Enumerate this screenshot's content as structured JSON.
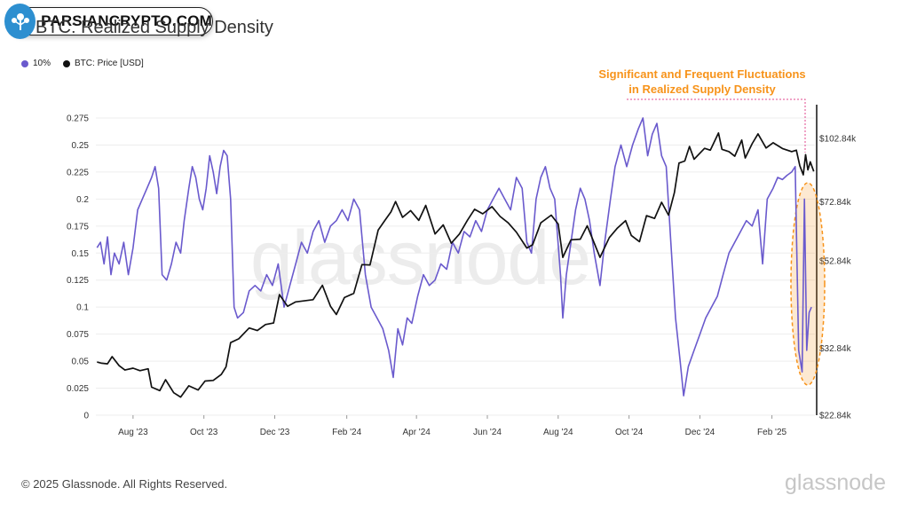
{
  "title": "BTC: Realized Supply Density",
  "watermark_badge": "PARSIANCRYPTO.COM",
  "legend": [
    {
      "label": "10%",
      "color": "#6a5acd"
    },
    {
      "label": "BTC: Price [USD]",
      "color": "#111111"
    }
  ],
  "annotation": {
    "line1": "Significant and Frequent Fluctuations",
    "line2": "in Realized Supply Density",
    "color": "#f7931a"
  },
  "footer": "© 2025 Glassnode. All Rights Reserved.",
  "brand": "glassnode",
  "watermark": "glassnode",
  "chart_data": {
    "type": "line",
    "title": "BTC: Realized Supply Density",
    "x_start": "2023-06-30",
    "x_end": "2025-03-10",
    "x_ticks": [
      {
        "label": "Aug '23",
        "date": "2023-08-01"
      },
      {
        "label": "Oct '23",
        "date": "2023-10-01"
      },
      {
        "label": "Dec '23",
        "date": "2023-12-01"
      },
      {
        "label": "Feb '24",
        "date": "2024-02-01"
      },
      {
        "label": "Apr '24",
        "date": "2024-04-01"
      },
      {
        "label": "Jun '24",
        "date": "2024-06-01"
      },
      {
        "label": "Aug '24",
        "date": "2024-08-01"
      },
      {
        "label": "Oct '24",
        "date": "2024-10-01"
      },
      {
        "label": "Dec '24",
        "date": "2024-12-01"
      },
      {
        "label": "Feb '25",
        "date": "2025-02-01"
      }
    ],
    "y_left": {
      "min": 0,
      "max": 0.275,
      "ticks": [
        0,
        0.025,
        0.05,
        0.075,
        0.1,
        0.125,
        0.15,
        0.175,
        0.2,
        0.225,
        0.25,
        0.275
      ],
      "tick_labels": [
        "0",
        "0.025",
        "0.05",
        "0.075",
        "0.1",
        "0.125",
        "0.15",
        "0.175",
        "0.2",
        "0.225",
        "0.25",
        "0.275"
      ]
    },
    "y_right": {
      "scale": "log",
      "min": 22840,
      "max": 115000,
      "ticks": [
        22840,
        32840,
        52840,
        72840,
        102840
      ],
      "tick_labels": [
        "$22.84k",
        "$32.84k",
        "$52.84k",
        "$72.84k",
        "$102.84k"
      ]
    },
    "series": [
      {
        "name": "10%",
        "axis": "left",
        "color": "#6a5acd",
        "points": [
          [
            "2023-07-01",
            0.155
          ],
          [
            "2023-07-04",
            0.16
          ],
          [
            "2023-07-07",
            0.14
          ],
          [
            "2023-07-10",
            0.165
          ],
          [
            "2023-07-13",
            0.13
          ],
          [
            "2023-07-16",
            0.15
          ],
          [
            "2023-07-20",
            0.14
          ],
          [
            "2023-07-24",
            0.16
          ],
          [
            "2023-07-28",
            0.13
          ],
          [
            "2023-08-01",
            0.155
          ],
          [
            "2023-08-05",
            0.19
          ],
          [
            "2023-08-09",
            0.2
          ],
          [
            "2023-08-13",
            0.21
          ],
          [
            "2023-08-17",
            0.22
          ],
          [
            "2023-08-20",
            0.23
          ],
          [
            "2023-08-23",
            0.21
          ],
          [
            "2023-08-26",
            0.13
          ],
          [
            "2023-08-30",
            0.125
          ],
          [
            "2023-09-03",
            0.14
          ],
          [
            "2023-09-07",
            0.16
          ],
          [
            "2023-09-11",
            0.15
          ],
          [
            "2023-09-14",
            0.18
          ],
          [
            "2023-09-18",
            0.21
          ],
          [
            "2023-09-21",
            0.23
          ],
          [
            "2023-09-24",
            0.22
          ],
          [
            "2023-09-27",
            0.2
          ],
          [
            "2023-09-30",
            0.19
          ],
          [
            "2023-10-03",
            0.21
          ],
          [
            "2023-10-06",
            0.24
          ],
          [
            "2023-10-09",
            0.225
          ],
          [
            "2023-10-12",
            0.205
          ],
          [
            "2023-10-15",
            0.23
          ],
          [
            "2023-10-18",
            0.245
          ],
          [
            "2023-10-21",
            0.24
          ],
          [
            "2023-10-24",
            0.2
          ],
          [
            "2023-10-27",
            0.1
          ],
          [
            "2023-10-30",
            0.09
          ],
          [
            "2023-11-04",
            0.095
          ],
          [
            "2023-11-09",
            0.115
          ],
          [
            "2023-11-14",
            0.12
          ],
          [
            "2023-11-19",
            0.115
          ],
          [
            "2023-11-24",
            0.13
          ],
          [
            "2023-11-29",
            0.12
          ],
          [
            "2023-12-04",
            0.14
          ],
          [
            "2023-12-09",
            0.1
          ],
          [
            "2023-12-14",
            0.12
          ],
          [
            "2023-12-19",
            0.14
          ],
          [
            "2023-12-24",
            0.16
          ],
          [
            "2023-12-29",
            0.15
          ],
          [
            "2024-01-03",
            0.17
          ],
          [
            "2024-01-08",
            0.18
          ],
          [
            "2024-01-13",
            0.16
          ],
          [
            "2024-01-18",
            0.175
          ],
          [
            "2024-01-23",
            0.18
          ],
          [
            "2024-01-28",
            0.19
          ],
          [
            "2024-02-02",
            0.18
          ],
          [
            "2024-02-07",
            0.2
          ],
          [
            "2024-02-12",
            0.19
          ],
          [
            "2024-02-17",
            0.13
          ],
          [
            "2024-02-22",
            0.1
          ],
          [
            "2024-02-27",
            0.09
          ],
          [
            "2024-03-03",
            0.08
          ],
          [
            "2024-03-08",
            0.06
          ],
          [
            "2024-03-12",
            0.035
          ],
          [
            "2024-03-16",
            0.08
          ],
          [
            "2024-03-20",
            0.065
          ],
          [
            "2024-03-24",
            0.09
          ],
          [
            "2024-03-28",
            0.085
          ],
          [
            "2024-04-02",
            0.11
          ],
          [
            "2024-04-07",
            0.13
          ],
          [
            "2024-04-12",
            0.12
          ],
          [
            "2024-04-17",
            0.125
          ],
          [
            "2024-04-22",
            0.14
          ],
          [
            "2024-04-27",
            0.135
          ],
          [
            "2024-05-02",
            0.16
          ],
          [
            "2024-05-07",
            0.15
          ],
          [
            "2024-05-12",
            0.17
          ],
          [
            "2024-05-17",
            0.165
          ],
          [
            "2024-05-22",
            0.18
          ],
          [
            "2024-05-27",
            0.17
          ],
          [
            "2024-06-01",
            0.19
          ],
          [
            "2024-06-06",
            0.2
          ],
          [
            "2024-06-11",
            0.21
          ],
          [
            "2024-06-16",
            0.2
          ],
          [
            "2024-06-21",
            0.19
          ],
          [
            "2024-06-26",
            0.22
          ],
          [
            "2024-07-01",
            0.21
          ],
          [
            "2024-07-05",
            0.16
          ],
          [
            "2024-07-09",
            0.15
          ],
          [
            "2024-07-13",
            0.2
          ],
          [
            "2024-07-17",
            0.22
          ],
          [
            "2024-07-21",
            0.23
          ],
          [
            "2024-07-25",
            0.21
          ],
          [
            "2024-07-29",
            0.2
          ],
          [
            "2024-08-03",
            0.13
          ],
          [
            "2024-08-05",
            0.09
          ],
          [
            "2024-08-08",
            0.13
          ],
          [
            "2024-08-12",
            0.16
          ],
          [
            "2024-08-16",
            0.19
          ],
          [
            "2024-08-20",
            0.21
          ],
          [
            "2024-08-24",
            0.2
          ],
          [
            "2024-08-28",
            0.18
          ],
          [
            "2024-09-01",
            0.15
          ],
          [
            "2024-09-06",
            0.12
          ],
          [
            "2024-09-10",
            0.16
          ],
          [
            "2024-09-15",
            0.2
          ],
          [
            "2024-09-19",
            0.23
          ],
          [
            "2024-09-24",
            0.25
          ],
          [
            "2024-09-29",
            0.23
          ],
          [
            "2024-10-04",
            0.25
          ],
          [
            "2024-10-09",
            0.265
          ],
          [
            "2024-10-13",
            0.275
          ],
          [
            "2024-10-17",
            0.24
          ],
          [
            "2024-10-21",
            0.26
          ],
          [
            "2024-10-25",
            0.27
          ],
          [
            "2024-10-29",
            0.24
          ],
          [
            "2024-11-02",
            0.23
          ],
          [
            "2024-11-06",
            0.16
          ],
          [
            "2024-11-10",
            0.09
          ],
          [
            "2024-11-14",
            0.05
          ],
          [
            "2024-11-17",
            0.018
          ],
          [
            "2024-11-21",
            0.045
          ],
          [
            "2024-11-26",
            0.06
          ],
          [
            "2024-12-01",
            0.075
          ],
          [
            "2024-12-06",
            0.09
          ],
          [
            "2024-12-11",
            0.1
          ],
          [
            "2024-12-16",
            0.11
          ],
          [
            "2024-12-21",
            0.13
          ],
          [
            "2024-12-26",
            0.15
          ],
          [
            "2024-12-31",
            0.16
          ],
          [
            "2025-01-05",
            0.17
          ],
          [
            "2025-01-10",
            0.18
          ],
          [
            "2025-01-15",
            0.175
          ],
          [
            "2025-01-20",
            0.19
          ],
          [
            "2025-01-24",
            0.14
          ],
          [
            "2025-01-28",
            0.2
          ],
          [
            "2025-02-02",
            0.21
          ],
          [
            "2025-02-06",
            0.22
          ],
          [
            "2025-02-10",
            0.218
          ],
          [
            "2025-02-14",
            0.222
          ],
          [
            "2025-02-18",
            0.225
          ],
          [
            "2025-02-21",
            0.23
          ],
          [
            "2025-02-24",
            0.06
          ],
          [
            "2025-02-27",
            0.04
          ],
          [
            "2025-03-01",
            0.2
          ],
          [
            "2025-03-03",
            0.06
          ],
          [
            "2025-03-05",
            0.095
          ],
          [
            "2025-03-07",
            0.1
          ]
        ]
      },
      {
        "name": "BTC: Price [USD]",
        "axis": "right",
        "color": "#111111",
        "points": [
          [
            "2023-07-01",
            30500
          ],
          [
            "2023-07-05",
            30300
          ],
          [
            "2023-07-10",
            30200
          ],
          [
            "2023-07-14",
            31400
          ],
          [
            "2023-07-20",
            29900
          ],
          [
            "2023-07-25",
            29200
          ],
          [
            "2023-08-01",
            29500
          ],
          [
            "2023-08-07",
            29100
          ],
          [
            "2023-08-14",
            29400
          ],
          [
            "2023-08-17",
            26600
          ],
          [
            "2023-08-24",
            26100
          ],
          [
            "2023-08-29",
            27700
          ],
          [
            "2023-09-05",
            25800
          ],
          [
            "2023-09-11",
            25200
          ],
          [
            "2023-09-18",
            26800
          ],
          [
            "2023-09-26",
            26200
          ],
          [
            "2023-10-02",
            27500
          ],
          [
            "2023-10-09",
            27600
          ],
          [
            "2023-10-16",
            28500
          ],
          [
            "2023-10-20",
            29700
          ],
          [
            "2023-10-24",
            33900
          ],
          [
            "2023-10-31",
            34600
          ],
          [
            "2023-11-09",
            36700
          ],
          [
            "2023-11-16",
            36200
          ],
          [
            "2023-11-23",
            37400
          ],
          [
            "2023-11-30",
            37700
          ],
          [
            "2023-12-05",
            44000
          ],
          [
            "2023-12-12",
            41300
          ],
          [
            "2023-12-19",
            42300
          ],
          [
            "2023-12-28",
            42600
          ],
          [
            "2024-01-03",
            42800
          ],
          [
            "2024-01-11",
            46300
          ],
          [
            "2024-01-18",
            41300
          ],
          [
            "2024-01-23",
            39500
          ],
          [
            "2024-01-30",
            43300
          ],
          [
            "2024-02-07",
            44300
          ],
          [
            "2024-02-14",
            51800
          ],
          [
            "2024-02-21",
            51700
          ],
          [
            "2024-02-28",
            62500
          ],
          [
            "2024-03-05",
            66000
          ],
          [
            "2024-03-10",
            69000
          ],
          [
            "2024-03-14",
            73000
          ],
          [
            "2024-03-20",
            67000
          ],
          [
            "2024-03-27",
            69500
          ],
          [
            "2024-04-03",
            65900
          ],
          [
            "2024-04-09",
            71500
          ],
          [
            "2024-04-17",
            61200
          ],
          [
            "2024-04-24",
            64300
          ],
          [
            "2024-05-01",
            58200
          ],
          [
            "2024-05-08",
            61200
          ],
          [
            "2024-05-15",
            66000
          ],
          [
            "2024-05-21",
            70000
          ],
          [
            "2024-05-28",
            68300
          ],
          [
            "2024-06-05",
            71000
          ],
          [
            "2024-06-12",
            67300
          ],
          [
            "2024-06-19",
            65000
          ],
          [
            "2024-06-26",
            61800
          ],
          [
            "2024-07-05",
            56700
          ],
          [
            "2024-07-10",
            57700
          ],
          [
            "2024-07-17",
            65000
          ],
          [
            "2024-07-26",
            67800
          ],
          [
            "2024-08-01",
            64600
          ],
          [
            "2024-08-05",
            53900
          ],
          [
            "2024-08-12",
            59300
          ],
          [
            "2024-08-20",
            59500
          ],
          [
            "2024-08-26",
            64000
          ],
          [
            "2024-09-06",
            53900
          ],
          [
            "2024-09-14",
            60000
          ],
          [
            "2024-09-21",
            63200
          ],
          [
            "2024-09-28",
            65800
          ],
          [
            "2024-10-03",
            60700
          ],
          [
            "2024-10-10",
            58700
          ],
          [
            "2024-10-16",
            67600
          ],
          [
            "2024-10-23",
            66600
          ],
          [
            "2024-10-29",
            72700
          ],
          [
            "2024-11-04",
            67800
          ],
          [
            "2024-11-09",
            76600
          ],
          [
            "2024-11-13",
            90000
          ],
          [
            "2024-11-18",
            91000
          ],
          [
            "2024-11-22",
            98500
          ],
          [
            "2024-11-26",
            91900
          ],
          [
            "2024-12-05",
            97500
          ],
          [
            "2024-12-10",
            96500
          ],
          [
            "2024-12-17",
            106000
          ],
          [
            "2024-12-20",
            97000
          ],
          [
            "2024-12-26",
            95800
          ],
          [
            "2024-12-31",
            93400
          ],
          [
            "2025-01-06",
            102000
          ],
          [
            "2025-01-09",
            92500
          ],
          [
            "2025-01-15",
            100000
          ],
          [
            "2025-01-20",
            105500
          ],
          [
            "2025-01-27",
            97700
          ],
          [
            "2025-02-02",
            100500
          ],
          [
            "2025-02-10",
            97400
          ],
          [
            "2025-02-18",
            95800
          ],
          [
            "2025-02-22",
            96500
          ],
          [
            "2025-02-25",
            88700
          ],
          [
            "2025-02-28",
            84400
          ],
          [
            "2025-03-02",
            94200
          ],
          [
            "2025-03-04",
            86700
          ],
          [
            "2025-03-06",
            90600
          ],
          [
            "2025-03-09",
            86000
          ]
        ]
      }
    ]
  }
}
